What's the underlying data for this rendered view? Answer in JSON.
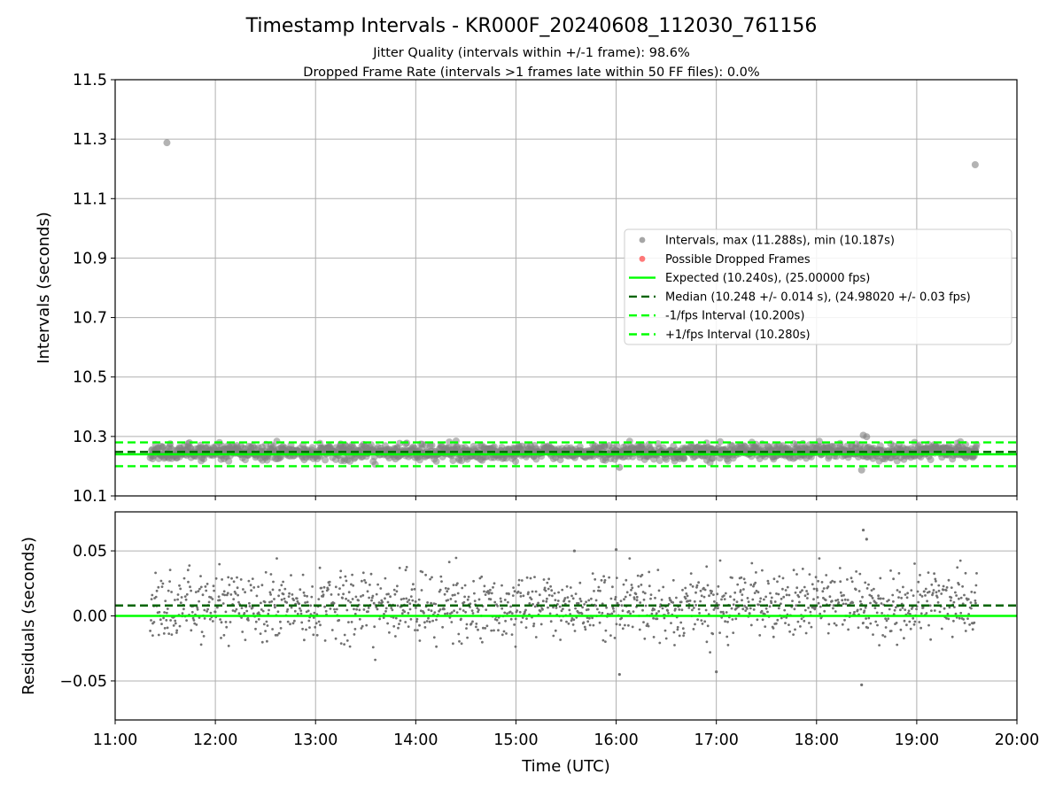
{
  "chart_data": [
    {
      "type": "scatter",
      "title": "Timestamp Intervals - KR000F_20240608_112030_761156",
      "subtitle_lines": [
        "Jitter Quality (intervals within +/-1 frame): 98.6%",
        "Dropped Frame Rate (intervals >1 frames late within 50 FF files): 0.0%"
      ],
      "ylabel": "Intervals (seconds)",
      "xlim": [
        "11:00",
        "20:00"
      ],
      "ylim": [
        10.1,
        11.5
      ],
      "y_ticks": [
        "10.1",
        "10.3",
        "10.5",
        "10.7",
        "10.9",
        "11.1",
        "11.3",
        "11.5"
      ],
      "grid": true,
      "legend_position": "center-right",
      "data_span": [
        "11:21",
        "19:36"
      ],
      "series": [
        {
          "name": "Intervals, max (11.288s), min (10.187s)",
          "kind": "points",
          "color": "#808080",
          "notable_points": [
            {
              "x": "11:31",
              "y": 11.288
            },
            {
              "x": "19:35",
              "y": 11.214
            },
            {
              "x": "18:28",
              "y": 10.304
            },
            {
              "x": "18:30",
              "y": 10.299
            },
            {
              "x": "18:27",
              "y": 10.187
            },
            {
              "x": "16:02",
              "y": 10.196
            }
          ],
          "bulk_range": [
            10.205,
            10.29
          ]
        },
        {
          "name": "Possible Dropped Frames",
          "kind": "points",
          "color": "#ff4040",
          "values": []
        },
        {
          "name": "Expected (10.240s), (25.00000 fps)",
          "kind": "hline",
          "y": 10.24,
          "color": "#00ff00",
          "style": "solid"
        },
        {
          "name": "Median (10.248 +/- 0.014 s), (24.98020 +/- 0.03 fps)",
          "kind": "hline",
          "y": 10.248,
          "color": "#006400",
          "style": "dashed"
        },
        {
          "name": "-1/fps Interval (10.200s)",
          "kind": "hline",
          "y": 10.2,
          "color": "#00ff00",
          "style": "dashed"
        },
        {
          "name": "+1/fps Interval (10.280s)",
          "kind": "hline",
          "y": 10.28,
          "color": "#00ff00",
          "style": "dashed"
        }
      ]
    },
    {
      "type": "scatter",
      "xlabel": "Time (UTC)",
      "ylabel": "Residuals (seconds)",
      "x_ticks": [
        "11:00",
        "12:00",
        "13:00",
        "14:00",
        "15:00",
        "16:00",
        "17:00",
        "18:00",
        "19:00",
        "20:00"
      ],
      "xlim": [
        "11:00",
        "20:00"
      ],
      "ylim": [
        -0.08,
        0.08
      ],
      "y_ticks": [
        "−0.05",
        "0.00",
        "0.05"
      ],
      "y_tick_values": [
        -0.05,
        0.0,
        0.05
      ],
      "grid": true,
      "series": [
        {
          "name": "",
          "kind": "points",
          "color": "#707070",
          "bulk_range": [
            -0.035,
            0.045
          ],
          "notable_points": [
            {
              "x": "18:28",
              "y": 0.066
            },
            {
              "x": "18:30",
              "y": 0.059
            },
            {
              "x": "18:27",
              "y": -0.053
            },
            {
              "x": "16:02",
              "y": -0.045
            },
            {
              "x": "17:00",
              "y": -0.043
            },
            {
              "x": "16:00",
              "y": 0.051
            },
            {
              "x": "15:35",
              "y": 0.05
            }
          ]
        },
        {
          "name": "",
          "kind": "hline",
          "y": 0.0,
          "color": "#00ff00",
          "style": "solid"
        },
        {
          "name": "",
          "kind": "hline",
          "y": 0.008,
          "color": "#006400",
          "style": "dashed"
        }
      ]
    }
  ]
}
